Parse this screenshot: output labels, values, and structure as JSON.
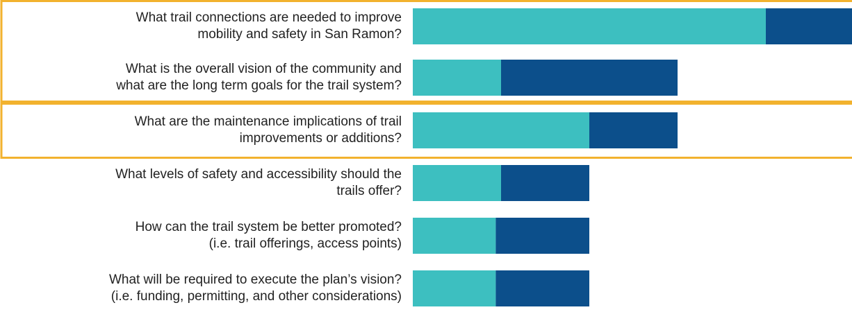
{
  "chart_data": {
    "type": "stacked-bar-horizontal",
    "categories": [
      [
        "What trail connections are needed to improve",
        "mobility and safety in San Ramon?"
      ],
      [
        "What is the overall vision of the community and",
        "what are the long term goals for the trail system?"
      ],
      [
        "What are the maintenance implications of trail",
        "improvements or additions?"
      ],
      [
        "What levels of safety and accessibility should the",
        "trails offer?"
      ],
      [
        "How can the trail system be better promoted?",
        "(i.e. trail offerings, access points)"
      ],
      [
        "What will be required to execute the plan’s vision?",
        "(i.e. funding, permitting, and other considerations)"
      ]
    ],
    "series": [
      {
        "color": "#3dbfc0",
        "values": [
          4,
          1,
          2,
          1,
          0.94,
          0.94
        ]
      },
      {
        "color": "#0c4f8b",
        "values": [
          1,
          2,
          1,
          1,
          1.06,
          1.06
        ]
      }
    ],
    "xlim": [
      0,
      5
    ]
  }
}
